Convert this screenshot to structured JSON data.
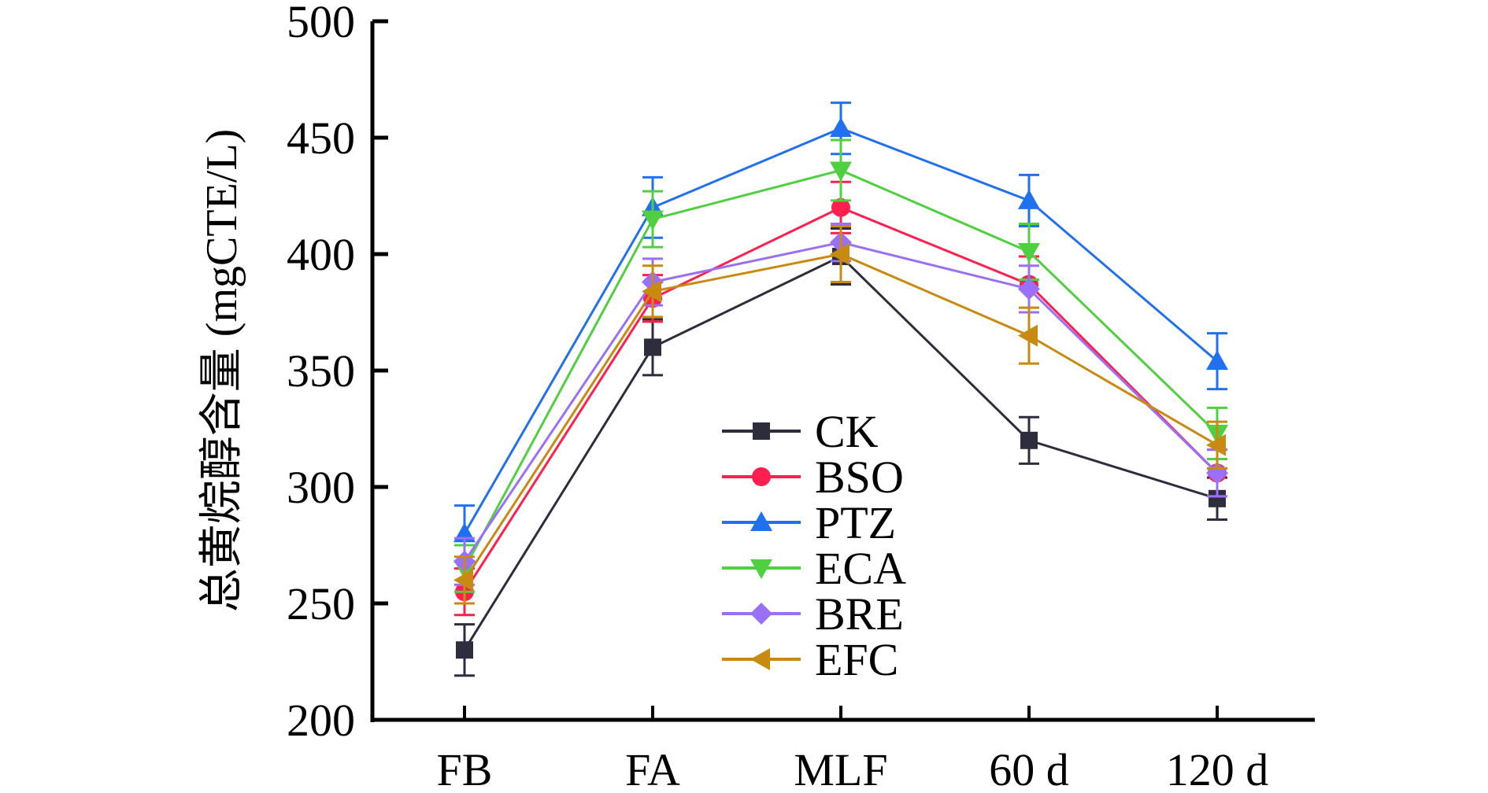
{
  "chart_data": {
    "type": "line",
    "title": "",
    "xlabel": "",
    "ylabel": "总黄烷醇含量 (mgCTE/L)",
    "categories": [
      "FB",
      "FA",
      "MLF",
      "60 d",
      "120 d"
    ],
    "ylim": [
      200,
      500
    ],
    "yticks": [
      200,
      250,
      300,
      350,
      400,
      450,
      500
    ],
    "grid": false,
    "legend_position": "center",
    "series": [
      {
        "name": "CK",
        "color": "#2e2d3d",
        "marker": "square",
        "values": [
          230,
          360,
          399,
          320,
          295
        ],
        "errors": [
          11,
          12,
          12,
          10,
          9
        ]
      },
      {
        "name": "BSO",
        "color": "#ff2050",
        "marker": "circle",
        "values": [
          255,
          381,
          420,
          387,
          306
        ],
        "errors": [
          10,
          10,
          11,
          12,
          10
        ]
      },
      {
        "name": "PTZ",
        "color": "#2070f0",
        "marker": "triangle-up",
        "values": [
          280,
          420,
          454,
          423,
          354
        ],
        "errors": [
          12,
          13,
          11,
          11,
          12
        ]
      },
      {
        "name": "ECA",
        "color": "#50d040",
        "marker": "triangle-down",
        "values": [
          265,
          415,
          436,
          401,
          323
        ],
        "errors": [
          10,
          12,
          13,
          12,
          11
        ]
      },
      {
        "name": "BRE",
        "color": "#9a70f8",
        "marker": "diamond",
        "values": [
          268,
          388,
          405,
          385,
          306
        ],
        "errors": [
          10,
          10,
          8,
          10,
          10
        ]
      },
      {
        "name": "EFC",
        "color": "#c88a10",
        "marker": "triangle-left",
        "values": [
          260,
          384,
          400,
          365,
          318
        ],
        "errors": [
          10,
          11,
          12,
          12,
          10
        ]
      }
    ]
  }
}
